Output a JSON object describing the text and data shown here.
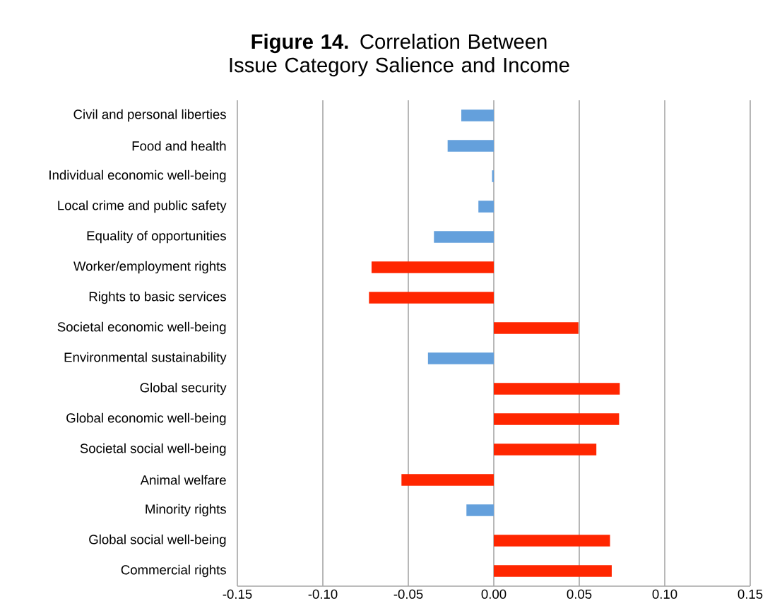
{
  "chart_data": {
    "type": "bar",
    "orientation": "horizontal",
    "title": "**Figure 14.** Correlation Between Issue Category Salience and Income",
    "categories": [
      "Civil and personal liberties",
      "Food and health",
      "Individual economic well-being",
      "Local crime and public safety",
      "Equality of opportunities",
      "Worker/employment rights",
      "Rights to basic services",
      "Societal economic well-being",
      "Environmental sustainability",
      "Global security",
      "Global economic well-being",
      "Societal social well-being",
      "Animal welfare",
      "Minority rights",
      "Global social well-being",
      "Commercial rights"
    ],
    "values": [
      -0.019,
      -0.027,
      -0.001,
      -0.009,
      -0.035,
      -0.0715,
      -0.073,
      0.0495,
      -0.0385,
      0.0737,
      0.0733,
      0.06,
      -0.054,
      -0.016,
      0.068,
      0.069
    ],
    "colors": [
      "#64a0dc",
      "#64a0dc",
      "#64a0dc",
      "#64a0dc",
      "#64a0dc",
      "#ff2600",
      "#ff2600",
      "#ff2600",
      "#64a0dc",
      "#ff2600",
      "#ff2600",
      "#ff2600",
      "#ff2600",
      "#64a0dc",
      "#ff2600",
      "#ff2600"
    ],
    "xlim": [
      -0.15,
      0.15
    ],
    "xticks": [
      {
        "value": -0.15,
        "label": "-0.15"
      },
      {
        "value": -0.1,
        "label": "-0.10"
      },
      {
        "value": -0.05,
        "label": "-0.05"
      },
      {
        "value": 0,
        "label": "0.00"
      },
      {
        "value": 0.05,
        "label": "0.05"
      },
      {
        "value": 0.1,
        "label": "0.10"
      },
      {
        "value": 0.15,
        "label": "0.15"
      }
    ],
    "grid": "x"
  }
}
